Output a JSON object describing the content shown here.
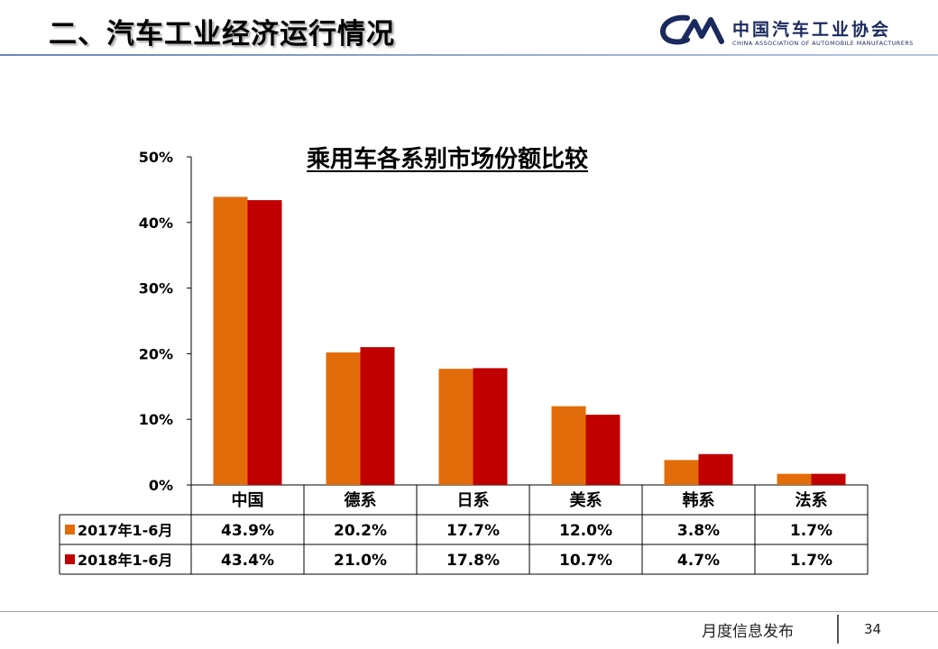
{
  "header": {
    "title": "二、汽车工业经济运行情况",
    "logo_cn": "中国汽车工业协会",
    "logo_en": "CHINA ASSOCIATION OF AUTOMOBILE MANUFACTURERS"
  },
  "footer": {
    "text": "月度信息发布",
    "page_number": "34"
  },
  "colors": {
    "series_2017": "#e36c0a",
    "series_2018": "#c00000",
    "logo_blue": "#1b2a5e"
  },
  "chart_data": {
    "type": "bar",
    "title": "乘用车各系别市场份额比较",
    "categories": [
      "中国",
      "德系",
      "日系",
      "美系",
      "韩系",
      "法系"
    ],
    "series": [
      {
        "name": "2017年1-6月",
        "values": [
          43.9,
          20.2,
          17.7,
          12.0,
          3.8,
          1.7
        ],
        "labels": [
          "43.9%",
          "20.2%",
          "17.7%",
          "12.0%",
          "3.8%",
          "1.7%"
        ],
        "color": "#e36c0a"
      },
      {
        "name": "2018年1-6月",
        "values": [
          43.4,
          21.0,
          17.8,
          10.7,
          4.7,
          1.7
        ],
        "labels": [
          "43.4%",
          "21.0%",
          "17.8%",
          "10.7%",
          "4.7%",
          "1.7%"
        ],
        "color": "#c00000"
      }
    ],
    "ylim": [
      0,
      50
    ],
    "yticks": [
      "0%",
      "10%",
      "20%",
      "30%",
      "40%",
      "50%"
    ],
    "ytick_values": [
      0,
      10,
      20,
      30,
      40,
      50
    ],
    "grid": false,
    "legend": "data-table"
  }
}
